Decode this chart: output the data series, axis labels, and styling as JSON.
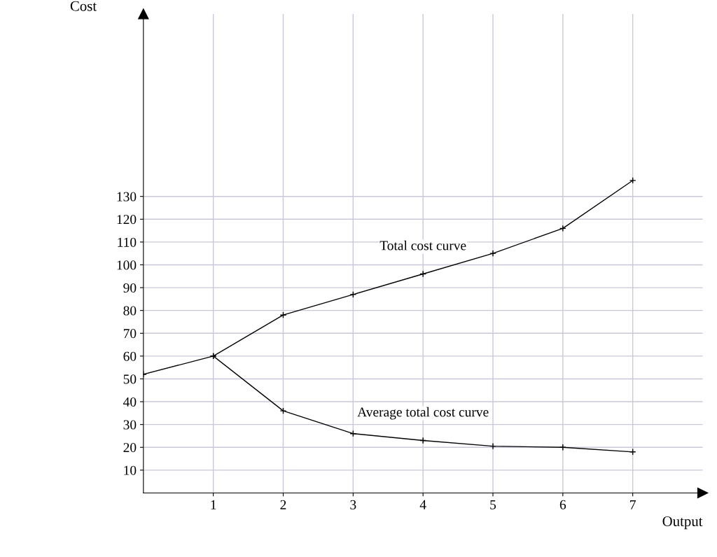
{
  "chart_data": {
    "type": "line",
    "xlabel": "Output",
    "ylabel": "Cost",
    "x": [
      0,
      1,
      2,
      3,
      4,
      5,
      6,
      7
    ],
    "series": [
      {
        "name": "Total cost curve",
        "color": "#000000",
        "values": [
          52,
          60,
          78,
          87,
          96,
          105,
          116,
          137
        ]
      },
      {
        "name": "Average total cost curve",
        "color": "#000000",
        "values": [
          null,
          60,
          36,
          26,
          23,
          20.5,
          20,
          18
        ]
      }
    ],
    "xlim": [
      0,
      8
    ],
    "ylim": [
      0,
      210
    ],
    "xticks": [
      1,
      2,
      3,
      4,
      5,
      6,
      7
    ],
    "yticks": [
      10,
      20,
      30,
      40,
      50,
      60,
      70,
      80,
      90,
      100,
      110,
      120,
      130
    ],
    "grid": true,
    "marker": "cross",
    "line_style": "solid",
    "legend": false
  }
}
